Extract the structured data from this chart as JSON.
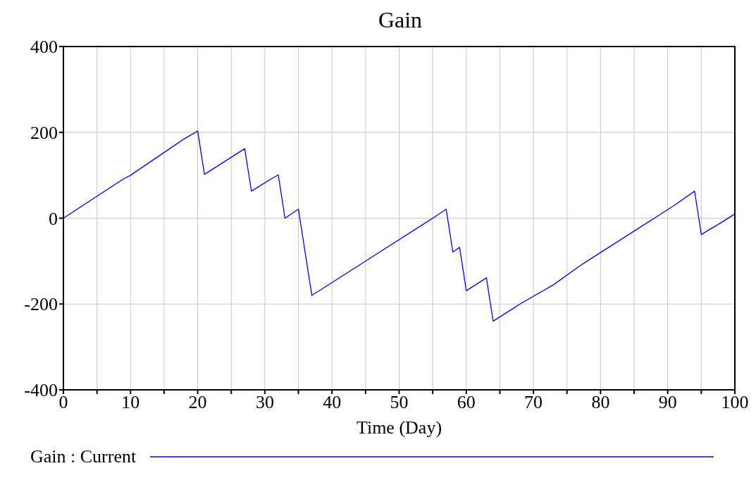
{
  "chart_data": {
    "type": "line",
    "title": "Gain",
    "xlabel": "Time (Day)",
    "x": [
      0,
      9,
      10,
      18,
      20,
      21,
      27,
      28,
      31,
      32,
      33,
      35,
      36,
      37,
      44,
      46,
      54,
      55,
      57,
      58,
      59,
      60,
      63,
      64,
      67,
      68,
      73,
      77,
      78,
      87,
      88,
      90,
      91,
      94,
      95,
      98,
      100
    ],
    "series": [
      {
        "name": "Gain : Current",
        "color": "#0000ff",
        "values": [
          0,
          92,
          100,
          185,
          203,
          102,
          162,
          63,
          92,
          101,
          0,
          21,
          -80,
          -180,
          -110,
          -90,
          -10,
          0,
          21,
          -79,
          -68,
          -169,
          -139,
          -240,
          -210,
          -200,
          -155,
          -110,
          -100,
          -10,
          0,
          20,
          30,
          63,
          -38,
          -10,
          10
        ]
      }
    ],
    "xlim": [
      0,
      100
    ],
    "xticks": [
      0,
      {
        "value": 5,
        "label": null
      },
      10,
      {
        "value": 15,
        "label": null
      },
      20,
      {
        "value": 25,
        "label": null
      },
      30,
      {
        "value": 35,
        "label": null
      },
      40,
      {
        "value": 45,
        "label": null
      },
      50,
      {
        "value": 55,
        "label": null
      },
      60,
      {
        "value": 65,
        "label": null
      },
      70,
      {
        "value": 75,
        "label": null
      },
      80,
      {
        "value": 85,
        "label": null
      },
      90,
      {
        "value": 95,
        "label": null
      },
      100
    ],
    "ylim": [
      -400,
      400
    ],
    "yticks": [
      -400,
      -200,
      0,
      200,
      400
    ],
    "grid": true,
    "legend": "bottom",
    "marker": "none",
    "line_style": "solid"
  }
}
